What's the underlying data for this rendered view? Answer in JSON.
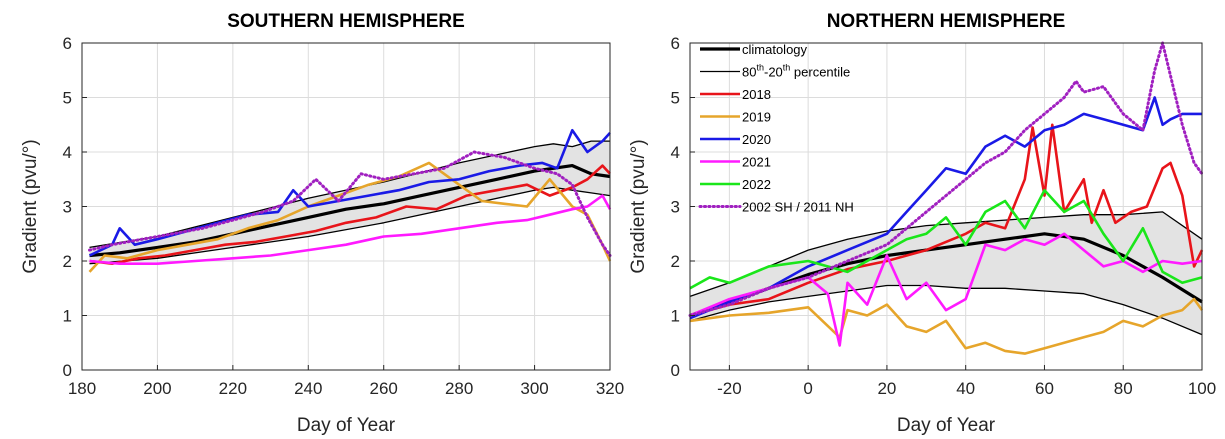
{
  "chart_data": [
    {
      "type": "line",
      "title": "SOUTHERN HEMISPHERE",
      "xlabel": "Day of Year",
      "ylabel": "Gradient (pvu/°)",
      "xlim": [
        180,
        320
      ],
      "ylim": [
        0,
        6
      ],
      "xticks": [
        "180",
        "200",
        "220",
        "240",
        "260",
        "280",
        "300",
        "320"
      ],
      "yticks": [
        "0",
        "1",
        "2",
        "3",
        "4",
        "5",
        "6"
      ],
      "grid": true,
      "band": {
        "x": [
          182,
          200,
          220,
          240,
          260,
          280,
          300,
          305,
          310,
          315,
          320
        ],
        "upper": [
          2.25,
          2.45,
          2.8,
          3.15,
          3.45,
          3.8,
          4.1,
          4.15,
          4.1,
          4.2,
          4.2
        ],
        "lower": [
          1.95,
          2.05,
          2.25,
          2.45,
          2.7,
          3.0,
          3.3,
          3.35,
          3.3,
          3.25,
          3.2
        ]
      },
      "series": [
        {
          "key": "climatology",
          "color": "#000000",
          "width": 3.2,
          "x": [
            182,
            190,
            200,
            210,
            220,
            230,
            240,
            250,
            260,
            270,
            280,
            290,
            300,
            305,
            310,
            315,
            320
          ],
          "y": [
            2.1,
            2.15,
            2.25,
            2.35,
            2.5,
            2.65,
            2.8,
            2.95,
            3.05,
            3.2,
            3.35,
            3.5,
            3.65,
            3.7,
            3.75,
            3.6,
            3.55
          ]
        },
        {
          "key": "p80",
          "color": "#000000",
          "width": 1.3,
          "x": [
            182,
            200,
            220,
            240,
            260,
            280,
            300,
            305,
            310,
            315,
            320
          ],
          "y": [
            2.25,
            2.45,
            2.8,
            3.15,
            3.45,
            3.8,
            4.1,
            4.15,
            4.1,
            4.2,
            4.2
          ]
        },
        {
          "key": "p20",
          "color": "#000000",
          "width": 1.3,
          "x": [
            182,
            200,
            220,
            240,
            260,
            280,
            300,
            305,
            310,
            315,
            320
          ],
          "y": [
            1.95,
            2.05,
            2.25,
            2.45,
            2.7,
            3.0,
            3.3,
            3.35,
            3.3,
            3.25,
            3.2
          ]
        },
        {
          "key": "y2018",
          "color": "#e8141a",
          "width": 2.6,
          "x": [
            182,
            188,
            195,
            202,
            210,
            218,
            226,
            234,
            242,
            250,
            258,
            266,
            274,
            282,
            290,
            298,
            304,
            310,
            314,
            318,
            320
          ],
          "y": [
            2.0,
            1.95,
            2.05,
            2.1,
            2.2,
            2.3,
            2.35,
            2.45,
            2.55,
            2.7,
            2.8,
            3.0,
            2.95,
            3.2,
            3.3,
            3.4,
            3.2,
            3.35,
            3.5,
            3.75,
            3.6
          ]
        },
        {
          "key": "y2019",
          "color": "#e6a52b",
          "width": 2.6,
          "x": [
            182,
            186,
            192,
            200,
            208,
            216,
            224,
            232,
            240,
            248,
            256,
            264,
            272,
            280,
            286,
            292,
            298,
            304,
            310,
            314,
            318,
            320
          ],
          "y": [
            1.8,
            2.1,
            2.05,
            2.2,
            2.3,
            2.4,
            2.6,
            2.75,
            3.0,
            3.2,
            3.4,
            3.55,
            3.8,
            3.4,
            3.1,
            3.05,
            3.0,
            3.5,
            3.0,
            2.85,
            2.3,
            2.0
          ]
        },
        {
          "key": "y2020",
          "color": "#1a1ae6",
          "width": 2.6,
          "x": [
            182,
            188,
            190,
            194,
            200,
            208,
            216,
            224,
            232,
            236,
            240,
            248,
            256,
            264,
            272,
            280,
            288,
            296,
            302,
            306,
            310,
            314,
            318,
            320
          ],
          "y": [
            2.1,
            2.3,
            2.6,
            2.3,
            2.4,
            2.55,
            2.7,
            2.85,
            2.9,
            3.3,
            3.0,
            3.1,
            3.2,
            3.3,
            3.45,
            3.5,
            3.65,
            3.75,
            3.8,
            3.7,
            4.4,
            4.0,
            4.2,
            4.35
          ]
        },
        {
          "key": "y2021",
          "color": "#ff1aff",
          "width": 2.6,
          "x": [
            182,
            190,
            200,
            210,
            220,
            230,
            240,
            250,
            260,
            270,
            280,
            290,
            298,
            304,
            310,
            314,
            318,
            320
          ],
          "y": [
            2.0,
            1.95,
            1.95,
            2.0,
            2.05,
            2.1,
            2.2,
            2.3,
            2.45,
            2.5,
            2.6,
            2.7,
            2.75,
            2.85,
            2.95,
            3.0,
            3.2,
            2.95
          ]
        },
        {
          "key": "sh2002",
          "color": "#a020c0",
          "width": 3,
          "dotted": true,
          "x": [
            182,
            188,
            196,
            204,
            212,
            220,
            228,
            236,
            242,
            248,
            254,
            260,
            268,
            276,
            284,
            292,
            300,
            306,
            310,
            314,
            318,
            320
          ],
          "y": [
            2.2,
            2.3,
            2.4,
            2.5,
            2.6,
            2.75,
            2.9,
            3.1,
            3.5,
            3.1,
            3.6,
            3.5,
            3.6,
            3.7,
            4.0,
            3.9,
            3.7,
            3.6,
            3.4,
            2.8,
            2.3,
            2.1
          ]
        }
      ]
    },
    {
      "type": "line",
      "title": "NORTHERN HEMISPHERE",
      "xlabel": "Day of Year",
      "ylabel": "Gradient (pvu/°)",
      "xlim": [
        -30,
        100
      ],
      "ylim": [
        0,
        6
      ],
      "xticks": [
        "-20",
        "0",
        "20",
        "40",
        "60",
        "80",
        "100"
      ],
      "yticks": [
        "0",
        "1",
        "2",
        "3",
        "4",
        "5",
        "6"
      ],
      "grid": true,
      "band": {
        "x": [
          -30,
          -20,
          -10,
          0,
          10,
          20,
          30,
          40,
          50,
          60,
          70,
          80,
          90,
          100
        ],
        "upper": [
          1.35,
          1.6,
          1.9,
          2.2,
          2.4,
          2.55,
          2.65,
          2.7,
          2.75,
          2.8,
          2.85,
          2.85,
          2.9,
          2.4
        ],
        "lower": [
          0.9,
          1.1,
          1.25,
          1.35,
          1.45,
          1.55,
          1.55,
          1.5,
          1.5,
          1.45,
          1.4,
          1.2,
          0.95,
          0.65
        ]
      },
      "series": [
        {
          "key": "climatology",
          "color": "#000000",
          "width": 3.2,
          "x": [
            -30,
            -20,
            -10,
            0,
            10,
            20,
            30,
            40,
            50,
            60,
            70,
            80,
            90,
            100
          ],
          "y": [
            1.0,
            1.25,
            1.5,
            1.75,
            1.95,
            2.1,
            2.2,
            2.3,
            2.4,
            2.5,
            2.4,
            2.1,
            1.7,
            1.25
          ]
        },
        {
          "key": "p80",
          "color": "#000000",
          "width": 1.3,
          "x": [
            -30,
            -20,
            -10,
            0,
            10,
            20,
            30,
            40,
            50,
            60,
            70,
            80,
            90,
            100
          ],
          "y": [
            1.35,
            1.6,
            1.9,
            2.2,
            2.4,
            2.55,
            2.65,
            2.7,
            2.75,
            2.8,
            2.85,
            2.85,
            2.9,
            2.4
          ]
        },
        {
          "key": "p20",
          "color": "#000000",
          "width": 1.3,
          "x": [
            -30,
            -20,
            -10,
            0,
            10,
            20,
            30,
            40,
            50,
            60,
            70,
            80,
            90,
            100
          ],
          "y": [
            0.9,
            1.1,
            1.25,
            1.35,
            1.45,
            1.55,
            1.55,
            1.5,
            1.5,
            1.45,
            1.4,
            1.2,
            0.95,
            0.65
          ]
        },
        {
          "key": "y2018",
          "color": "#e8141a",
          "width": 2.6,
          "x": [
            -30,
            -20,
            -10,
            0,
            10,
            20,
            30,
            40,
            45,
            50,
            55,
            57,
            60,
            62,
            65,
            70,
            72,
            75,
            78,
            82,
            86,
            90,
            92,
            95,
            98,
            100
          ],
          "y": [
            1.0,
            1.2,
            1.3,
            1.6,
            1.85,
            2.0,
            2.2,
            2.5,
            2.7,
            2.6,
            3.5,
            4.45,
            3.2,
            4.5,
            2.9,
            3.5,
            2.7,
            3.3,
            2.7,
            2.9,
            3.0,
            3.7,
            3.8,
            3.2,
            1.9,
            2.2
          ]
        },
        {
          "key": "y2019",
          "color": "#e6a52b",
          "width": 2.6,
          "x": [
            -30,
            -20,
            -10,
            0,
            8,
            10,
            15,
            20,
            25,
            30,
            35,
            40,
            45,
            50,
            55,
            60,
            65,
            70,
            75,
            80,
            85,
            90,
            95,
            98,
            100
          ],
          "y": [
            0.9,
            1.0,
            1.05,
            1.15,
            0.6,
            1.1,
            1.0,
            1.2,
            0.8,
            0.7,
            0.9,
            0.4,
            0.5,
            0.35,
            0.3,
            0.4,
            0.5,
            0.6,
            0.7,
            0.9,
            0.8,
            1.0,
            1.1,
            1.3,
            1.1
          ]
        },
        {
          "key": "y2020",
          "color": "#1a1ae6",
          "width": 2.6,
          "x": [
            -30,
            -20,
            -10,
            0,
            10,
            20,
            25,
            30,
            35,
            40,
            45,
            50,
            55,
            60,
            65,
            70,
            75,
            80,
            85,
            88,
            90,
            92,
            95,
            100
          ],
          "y": [
            0.95,
            1.25,
            1.5,
            1.9,
            2.2,
            2.5,
            2.9,
            3.3,
            3.7,
            3.6,
            4.1,
            4.3,
            4.1,
            4.4,
            4.5,
            4.7,
            4.6,
            4.5,
            4.4,
            5.0,
            4.5,
            4.6,
            4.7,
            4.7
          ]
        },
        {
          "key": "y2021",
          "color": "#ff1aff",
          "width": 2.6,
          "x": [
            -30,
            -20,
            -10,
            0,
            5,
            8,
            10,
            15,
            20,
            25,
            30,
            35,
            40,
            45,
            50,
            55,
            60,
            65,
            70,
            75,
            80,
            85,
            90,
            95,
            100
          ],
          "y": [
            1.0,
            1.3,
            1.5,
            1.7,
            1.4,
            0.45,
            1.6,
            1.2,
            2.1,
            1.3,
            1.6,
            1.1,
            1.3,
            2.3,
            2.2,
            2.4,
            2.3,
            2.5,
            2.2,
            1.9,
            2.0,
            1.8,
            2.0,
            1.95,
            2.0
          ]
        },
        {
          "key": "y2022",
          "color": "#1ae61a",
          "width": 2.6,
          "x": [
            -30,
            -25,
            -20,
            -10,
            0,
            10,
            20,
            25,
            30,
            35,
            40,
            45,
            50,
            55,
            60,
            65,
            70,
            75,
            80,
            85,
            90,
            95,
            100
          ],
          "y": [
            1.5,
            1.7,
            1.6,
            1.9,
            2.0,
            1.8,
            2.2,
            2.4,
            2.5,
            2.8,
            2.3,
            2.9,
            3.1,
            2.6,
            3.3,
            2.9,
            3.1,
            2.5,
            2.0,
            2.6,
            1.8,
            1.6,
            1.7
          ]
        },
        {
          "key": "nh2011",
          "color": "#a020c0",
          "width": 3,
          "dotted": true,
          "x": [
            -30,
            -20,
            -10,
            0,
            10,
            20,
            25,
            30,
            35,
            40,
            45,
            50,
            55,
            60,
            65,
            68,
            70,
            75,
            80,
            85,
            88,
            90,
            92,
            95,
            98,
            100
          ],
          "y": [
            1.0,
            1.2,
            1.5,
            1.7,
            2.0,
            2.3,
            2.6,
            2.9,
            3.2,
            3.5,
            3.8,
            4.0,
            4.4,
            4.7,
            5.0,
            5.3,
            5.1,
            5.2,
            4.7,
            4.4,
            5.5,
            6.0,
            5.4,
            4.5,
            3.8,
            3.6
          ]
        }
      ]
    }
  ],
  "legend": {
    "placement": "top-left of northern panel",
    "entries": [
      {
        "label": "climatology",
        "color": "#000000",
        "style": "thick"
      },
      {
        "label_main": "80",
        "sup1": "th",
        "label_mid": "-20",
        "sup2": "th",
        "label_end": " percentile",
        "color": "#000000",
        "style": "thin"
      },
      {
        "label": "2018",
        "color": "#e8141a",
        "style": "solid"
      },
      {
        "label": "2019",
        "color": "#e6a52b",
        "style": "solid"
      },
      {
        "label": "2020",
        "color": "#1a1ae6",
        "style": "solid"
      },
      {
        "label": "2021",
        "color": "#ff1aff",
        "style": "solid"
      },
      {
        "label": "2022",
        "color": "#1ae61a",
        "style": "solid"
      },
      {
        "label": "2002 SH / 2011 NH",
        "color": "#a020c0",
        "style": "dotted"
      }
    ]
  }
}
